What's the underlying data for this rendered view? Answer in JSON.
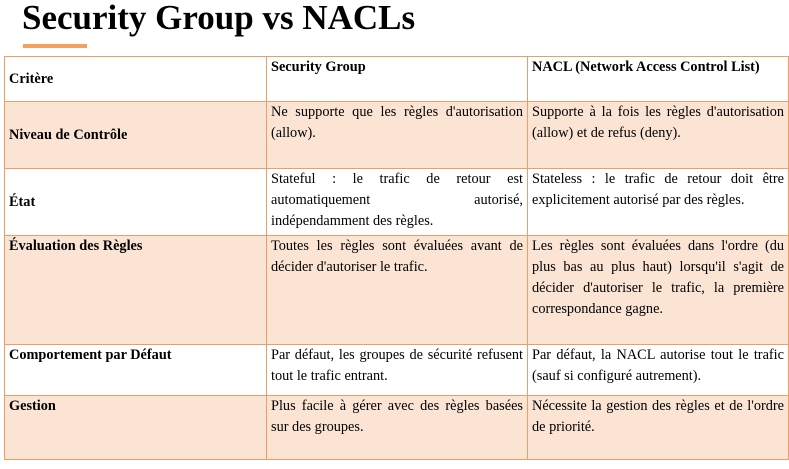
{
  "title": "Security Group vs NACLs",
  "colors": {
    "accent": "#f5a05d",
    "border": "#e8a06a",
    "row_shade": "#fbe4d4"
  },
  "table": {
    "headers": [
      "Critère",
      "Security Group",
      "NACL (Network Access Control List)"
    ],
    "rows": [
      {
        "label": "Niveau de Contrôle",
        "security_group": "Ne supporte que les règles d'autorisation (allow).",
        "nacl": "Supporte à la fois les règles d'autorisation (allow) et de refus (deny)."
      },
      {
        "label": "État",
        "security_group": "Stateful : le trafic de retour est automatiquement autorisé, indépendamment des règles.",
        "nacl": "Stateless : le trafic de retour doit être explicitement autorisé par des règles."
      },
      {
        "label": "Évaluation des Règles",
        "security_group": "Toutes les règles sont évaluées avant de décider d'autoriser le trafic.",
        "nacl": "Les règles sont évaluées dans l'ordre (du plus bas au plus haut) lorsqu'il s'agit de décider d'autoriser le trafic, la première correspondance gagne."
      },
      {
        "label": "Comportement par Défaut",
        "security_group": "Par défaut, les groupes de sécurité refusent tout le trafic entrant.",
        "nacl": "Par défaut, la NACL autorise tout le trafic (sauf si configuré autrement)."
      },
      {
        "label": "Gestion",
        "security_group": "Plus facile à gérer avec des règles basées sur des groupes.",
        "nacl": "Nécessite la gestion des règles et de l'ordre de priorité."
      }
    ]
  }
}
